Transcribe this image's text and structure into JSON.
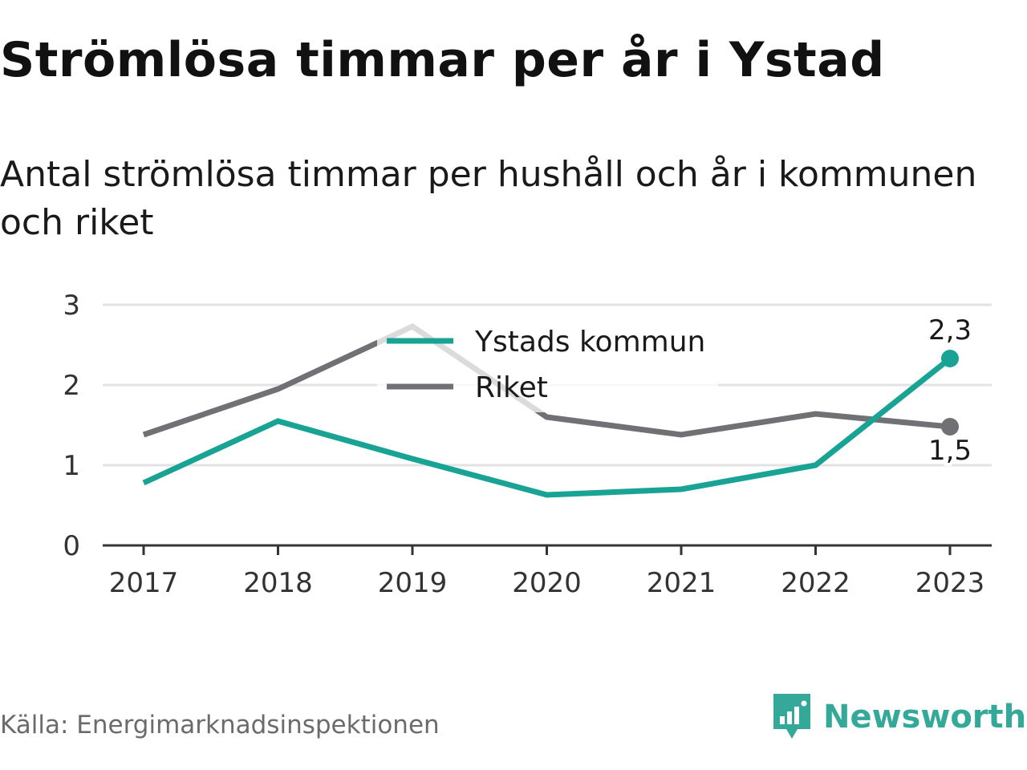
{
  "title": "Strömlösa timmar per år i Ystad",
  "subtitle": "Antal strömlösa timmar per hushåll och år i kommunen och riket",
  "source": "Källa: Energimarknadsinspektionen",
  "brand": {
    "name": "Newsworthy",
    "icon": "bar-chart-speech-bubble-icon",
    "color": "#34a99a"
  },
  "chart_data": {
    "type": "line",
    "categories": [
      "2017",
      "2018",
      "2019",
      "2020",
      "2021",
      "2022",
      "2023"
    ],
    "ylim": [
      0,
      3
    ],
    "yticks": [
      "0",
      "1",
      "2",
      "3"
    ],
    "grid": true,
    "legend_position": "top-center",
    "xlabel": "",
    "ylabel": "",
    "series": [
      {
        "name": "Ystads kommun",
        "color": "#18a394",
        "values": [
          0.78,
          1.55,
          1.08,
          0.63,
          0.7,
          1.0,
          2.33
        ],
        "end_label": "2,3"
      },
      {
        "name": "Riket",
        "color": "#707075",
        "values": [
          1.38,
          1.95,
          2.73,
          1.6,
          1.38,
          1.64,
          1.48
        ],
        "end_label": "1,5"
      }
    ]
  }
}
